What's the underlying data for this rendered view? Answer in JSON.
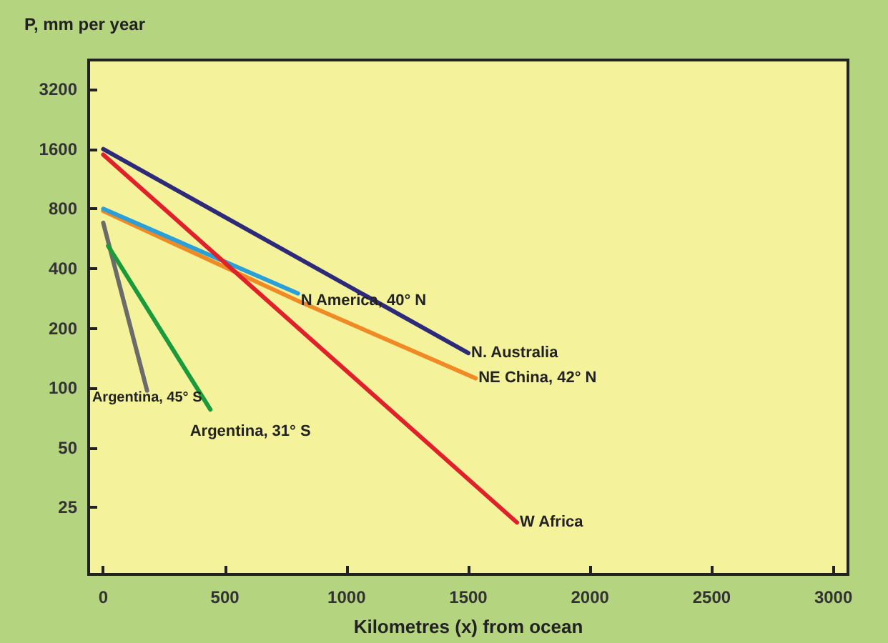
{
  "chart_data": {
    "type": "line",
    "ylabel": "P, mm per year",
    "xlabel": "Kilometres (x) from ocean",
    "log": "y",
    "grid": false,
    "legend": false,
    "marker": "none",
    "xlim": [
      -60,
      3060
    ],
    "xticks": [
      0,
      500,
      1000,
      1500,
      2000,
      2500,
      3000
    ],
    "ylim": [
      11.5,
      4500
    ],
    "yticks": [
      25,
      50,
      100,
      200,
      400,
      800,
      1600,
      3200
    ],
    "series": [
      {
        "name": "N. Australia",
        "color": "#2e2a7a",
        "x": [
          0,
          1500
        ],
        "values": [
          1600,
          150
        ]
      },
      {
        "name": "NE China, 42° N",
        "color": "#f08a24",
        "x": [
          0,
          800,
          1530
        ],
        "values": [
          780,
          275,
          112
        ]
      },
      {
        "name": "N America, 40° N",
        "color": "#2a9fd8",
        "x": [
          0,
          800
        ],
        "values": [
          800,
          300
        ]
      },
      {
        "name": "W Africa",
        "color": "#e0202a",
        "x": [
          0,
          1700
        ],
        "values": [
          1500,
          21
        ]
      },
      {
        "name": "Argentina, 45° S",
        "color": "#6b6b6b",
        "x": [
          0,
          180
        ],
        "values": [
          680,
          97
        ]
      },
      {
        "name": "Argentina, 31° S",
        "color": "#1a9a3a",
        "x": [
          20,
          440
        ],
        "values": [
          520,
          78
        ]
      }
    ]
  }
}
